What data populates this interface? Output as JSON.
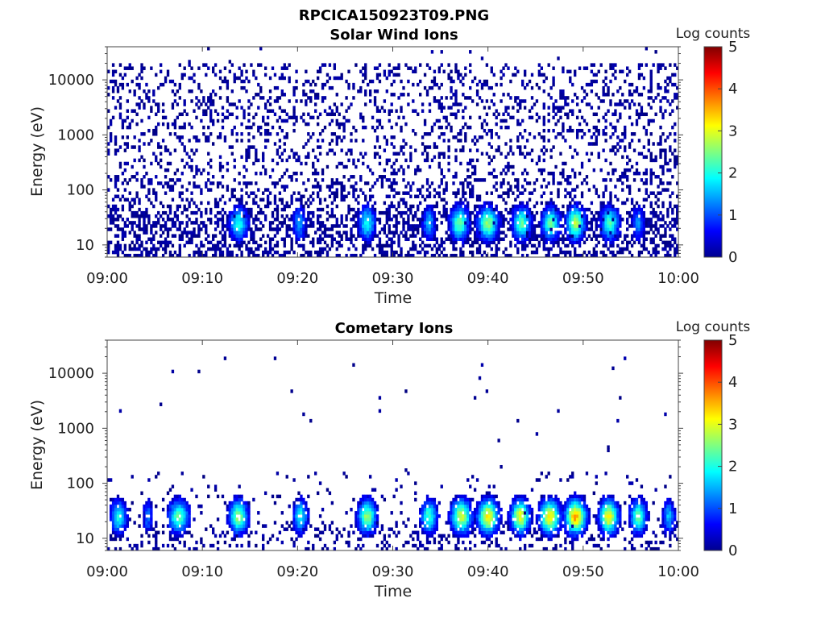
{
  "figure": {
    "title": "RPCICA150923T09.PNG"
  },
  "chart_data": [
    {
      "type": "heatmap",
      "title": "Solar Wind Ions",
      "xlabel": "Time",
      "ylabel": "Energy (eV)",
      "x_range": [
        "09:00",
        "10:00"
      ],
      "x_tick_labels": [
        "09:00",
        "09:10",
        "09:20",
        "09:30",
        "09:40",
        "09:50",
        "10:00"
      ],
      "y_scale": "log",
      "y_range_eV": [
        6,
        40000
      ],
      "y_tick_values": [
        10,
        100,
        1000,
        10000
      ],
      "y_tick_labels": [
        "10",
        "100",
        "1000",
        "10000"
      ],
      "colorbar": {
        "label": "Log counts",
        "range": [
          0,
          5
        ],
        "tick_labels": [
          "0",
          "1",
          "2",
          "3",
          "4",
          "5"
        ],
        "colormap": "jet"
      },
      "background_counts": "sparse, log counts ~0 at 6-30000 eV",
      "peak_energy_eV": 25,
      "bursts_minutes": [
        {
          "t": 13.8,
          "w": 0.9,
          "peak": 2.0
        },
        {
          "t": 20.2,
          "w": 0.6,
          "peak": 1.5
        },
        {
          "t": 27.3,
          "w": 0.8,
          "peak": 2.0
        },
        {
          "t": 33.8,
          "w": 0.6,
          "peak": 1.6
        },
        {
          "t": 37.0,
          "w": 0.9,
          "peak": 2.4
        },
        {
          "t": 40.0,
          "w": 1.0,
          "peak": 2.6
        },
        {
          "t": 43.5,
          "w": 0.9,
          "peak": 2.3
        },
        {
          "t": 46.6,
          "w": 0.9,
          "peak": 2.3
        },
        {
          "t": 49.2,
          "w": 0.9,
          "peak": 2.8
        },
        {
          "t": 52.8,
          "w": 0.9,
          "peak": 2.2
        },
        {
          "t": 55.8,
          "w": 0.6,
          "peak": 1.4
        }
      ]
    },
    {
      "type": "heatmap",
      "title": "Cometary Ions",
      "xlabel": "Time",
      "ylabel": "Energy (eV)",
      "x_range": [
        "09:00",
        "10:00"
      ],
      "x_tick_labels": [
        "09:00",
        "09:10",
        "09:20",
        "09:30",
        "09:40",
        "09:50",
        "10:00"
      ],
      "y_scale": "log",
      "y_range_eV": [
        6,
        40000
      ],
      "y_tick_values": [
        10,
        100,
        1000,
        10000
      ],
      "y_tick_labels": [
        "10",
        "100",
        "1000",
        "10000"
      ],
      "colorbar": {
        "label": "Log counts",
        "range": [
          0,
          5
        ],
        "tick_labels": [
          "0",
          "1",
          "2",
          "3",
          "4",
          "5"
        ],
        "colormap": "jet"
      },
      "background_counts": "sparse below 150 eV, isolated points up to 17000 eV",
      "peak_energy_eV": 25,
      "bursts_minutes": [
        {
          "t": 1.2,
          "w": 0.8,
          "peak": 2.0
        },
        {
          "t": 4.3,
          "w": 0.5,
          "peak": 1.2
        },
        {
          "t": 7.5,
          "w": 1.0,
          "peak": 2.3
        },
        {
          "t": 13.8,
          "w": 0.9,
          "peak": 2.6
        },
        {
          "t": 20.3,
          "w": 0.7,
          "peak": 2.0
        },
        {
          "t": 27.3,
          "w": 0.9,
          "peak": 2.6
        },
        {
          "t": 33.8,
          "w": 0.8,
          "peak": 2.2
        },
        {
          "t": 37.2,
          "w": 1.0,
          "peak": 2.9
        },
        {
          "t": 40.0,
          "w": 1.0,
          "peak": 3.2
        },
        {
          "t": 43.4,
          "w": 0.9,
          "peak": 3.1
        },
        {
          "t": 46.5,
          "w": 1.0,
          "peak": 3.2
        },
        {
          "t": 49.2,
          "w": 1.0,
          "peak": 3.6
        },
        {
          "t": 52.7,
          "w": 0.9,
          "peak": 3.2
        },
        {
          "t": 55.8,
          "w": 0.8,
          "peak": 2.4
        },
        {
          "t": 59.0,
          "w": 0.6,
          "peak": 1.6
        }
      ]
    }
  ]
}
